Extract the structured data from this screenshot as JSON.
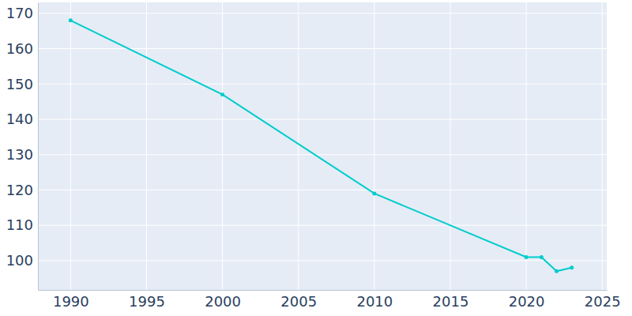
{
  "chart_data": {
    "type": "line",
    "x": [
      1990,
      2000,
      2010,
      2020,
      2021,
      2022,
      2023
    ],
    "values": [
      168,
      147,
      119,
      101,
      101,
      97,
      98
    ],
    "color": "#00cccc",
    "marker": "circle",
    "xlim": [
      1987.85,
      2025.3
    ],
    "xticks": [
      1990,
      1995,
      2000,
      2005,
      2010,
      2015,
      2020,
      2025
    ],
    "ylim": [
      91.7,
      173.1
    ],
    "yticks": [
      100,
      110,
      120,
      130,
      140,
      150,
      160,
      170
    ],
    "grid": true
  }
}
